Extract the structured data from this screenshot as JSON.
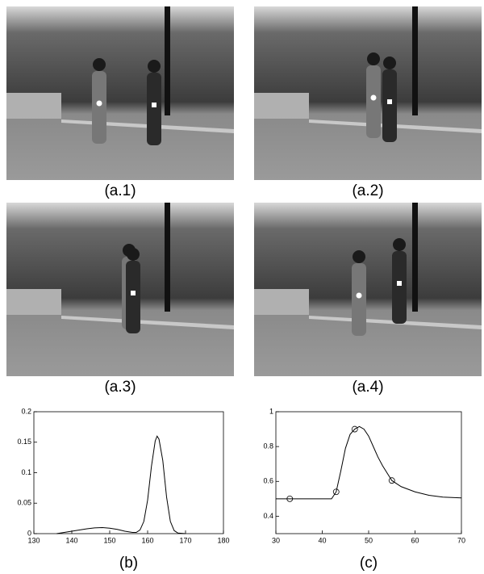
{
  "panels": [
    {
      "caption": "(a.1)"
    },
    {
      "caption": "(a.2)"
    },
    {
      "caption": "(a.3)"
    },
    {
      "caption": "(a.4)"
    }
  ],
  "chart_data": [
    {
      "type": "line",
      "caption": "(b)",
      "x": [
        136,
        138,
        140,
        142,
        144,
        146,
        148,
        150,
        152,
        154,
        156,
        157,
        158,
        159,
        160,
        161,
        162,
        162.5,
        163,
        164,
        165,
        166,
        167,
        168,
        170
      ],
      "values": [
        0,
        0.002,
        0.004,
        0.006,
        0.008,
        0.0095,
        0.01,
        0.009,
        0.007,
        0.004,
        0.002,
        0.002,
        0.006,
        0.02,
        0.055,
        0.11,
        0.152,
        0.16,
        0.155,
        0.12,
        0.06,
        0.02,
        0.005,
        0.001,
        0
      ],
      "color": "#000000",
      "xlim": [
        130,
        180
      ],
      "xticks": [
        130,
        140,
        150,
        160,
        170,
        180
      ],
      "ylim": [
        0,
        0.2
      ],
      "yticks": [
        0,
        0.05,
        0.1,
        0.15,
        0.2
      ]
    },
    {
      "type": "line",
      "caption": "(c)",
      "x": [
        30,
        35,
        40,
        42,
        43,
        44,
        45,
        46,
        47,
        48,
        49,
        50,
        51,
        52,
        53,
        55,
        57,
        60,
        63,
        66,
        70
      ],
      "values": [
        0.5,
        0.5,
        0.5,
        0.5,
        0.54,
        0.66,
        0.79,
        0.87,
        0.9,
        0.915,
        0.9,
        0.86,
        0.8,
        0.74,
        0.69,
        0.605,
        0.57,
        0.54,
        0.52,
        0.51,
        0.505
      ],
      "color": "#000000",
      "markers": {
        "x": [
          33,
          43,
          47,
          55
        ],
        "values": [
          0.5,
          0.54,
          0.9,
          0.605
        ]
      },
      "xlim": [
        30,
        70
      ],
      "xticks": [
        30,
        40,
        50,
        60,
        70
      ],
      "ylim": [
        0.3,
        1
      ],
      "yticks": [
        0.4,
        0.6,
        0.8,
        1
      ]
    }
  ]
}
